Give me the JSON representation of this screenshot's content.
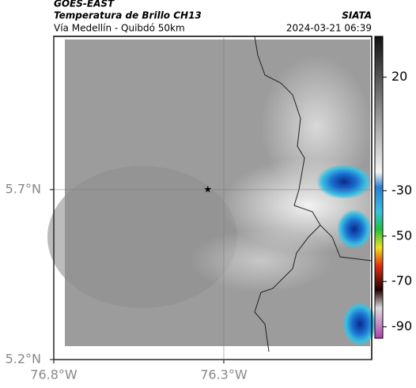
{
  "header": {
    "source": "GOES-EAST",
    "title": "Temperatura de Brillo CH13",
    "agency": "SIATA",
    "subtitle": "Vía Medellín - Quibdó 50km",
    "timestamp": "2024-03-21 06:39"
  },
  "map": {
    "lonlim": [
      -76.8,
      -75.865
    ],
    "latlim": [
      5.2,
      6.151
    ],
    "lonticks": [
      {
        "value": -76.8,
        "label": "76.8°W"
      },
      {
        "value": -76.3,
        "label": "76.3°W"
      }
    ],
    "latticks": [
      {
        "value": 5.2,
        "label": "5.2°N"
      },
      {
        "value": 5.7,
        "label": "5.7°N"
      }
    ],
    "marker": {
      "lon": -76.347,
      "lat": 5.7
    }
  },
  "colorbar": {
    "lim": [
      38,
      -95
    ],
    "ticks": [
      20,
      -30,
      -50,
      -70,
      -90
    ]
  }
}
